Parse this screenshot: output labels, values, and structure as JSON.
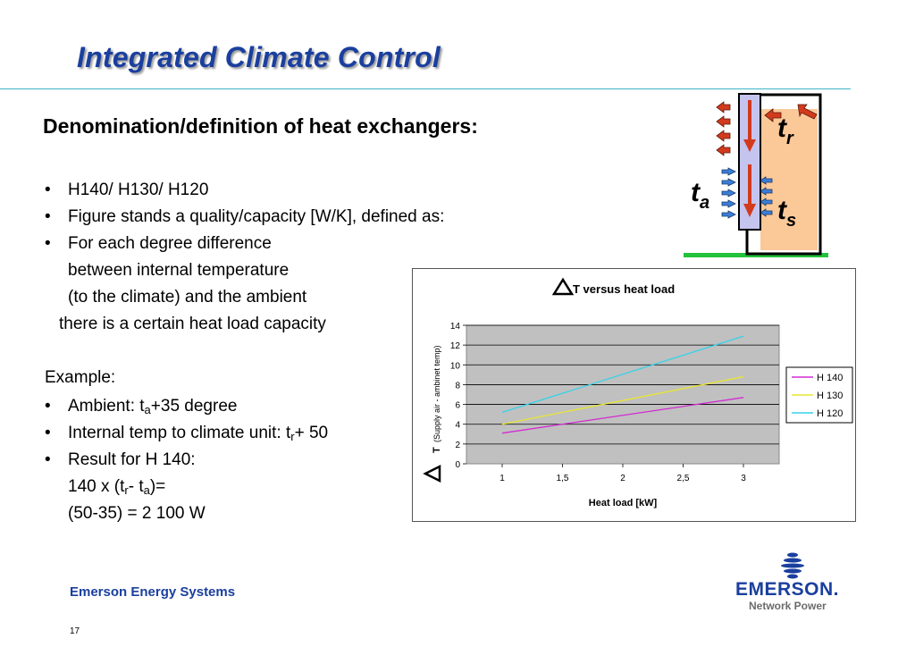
{
  "slide": {
    "title": "Integrated Climate Control",
    "heading": "Denomination/definition of heat exchangers:",
    "bullets": [
      "H140/ H130/ H120",
      "Figure stands a quality/capacity [W/K], defined as:",
      "For each degree difference"
    ],
    "continuation": [
      "between internal temperature",
      "(to the climate) and the ambient",
      "there is a certain heat load capacity"
    ],
    "example_label": "Example:",
    "example_bullets": {
      "ambient_pre": "Ambient: t",
      "ambient_sub": "a",
      "ambient_post": "+35 degree",
      "internal_pre": "Internal temp to climate unit: t",
      "internal_sub": "r",
      "internal_post": "+ 50",
      "result": "Result for H 140:"
    },
    "calc": {
      "line1_pre": "140 x (t",
      "line1_sub1": "r",
      "line1_mid": "- t",
      "line1_sub2": "a",
      "line1_post": ")=",
      "line2": "(50-35) = 2 100 W"
    },
    "bullet_glyph": "•",
    "page_number": "17"
  },
  "diagram": {
    "labels": {
      "t": "t",
      "r": "r",
      "a": "a",
      "s": "s"
    },
    "colors": {
      "frame": "#000000",
      "unit_fill": "#fbc898",
      "duct_fill": "#c4c4ee",
      "hot_arrow": "#d23a1e",
      "cold_arrow": "#3c7ed6",
      "ground": "#22c23a"
    }
  },
  "footer": {
    "brand": "Emerson Energy Systems",
    "logo_name": "EMERSON.",
    "logo_sub": "Network Power",
    "logo_icon": "emerson-logo-icon"
  },
  "chart_data": {
    "type": "line",
    "title_symbol": "Δ",
    "title": "T versus heat load",
    "xlabel": "Heat load [kW]",
    "ylabel_symbol": "Δ",
    "ylabel_main": "T",
    "ylabel_detail": "(Supply air - ambinet temp)",
    "x": [
      1,
      3
    ],
    "x_ticks": [
      "1",
      "1,5",
      "2",
      "2,5",
      "3"
    ],
    "x_tick_values": [
      1,
      1.5,
      2,
      2.5,
      3
    ],
    "y_ticks": [
      "0",
      "2",
      "4",
      "6",
      "8",
      "10",
      "12",
      "14"
    ],
    "ylim": [
      0,
      14
    ],
    "xlim": [
      1,
      3
    ],
    "grid": true,
    "legend_position": "right",
    "series": [
      {
        "name": "H 140",
        "color": "#d22ad2",
        "values": [
          3.1,
          6.7
        ]
      },
      {
        "name": "H 130",
        "color": "#e8e632",
        "values": [
          4.0,
          8.8
        ]
      },
      {
        "name": "H 120",
        "color": "#35d2e8",
        "values": [
          5.2,
          12.9
        ]
      }
    ]
  }
}
